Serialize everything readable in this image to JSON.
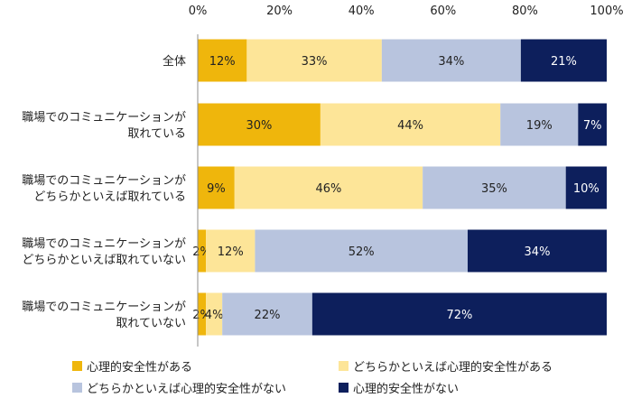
{
  "chart_data": {
    "type": "bar",
    "orientation": "horizontal",
    "stacked": true,
    "xlim": [
      0,
      100
    ],
    "xticks": [
      "0%",
      "20%",
      "40%",
      "60%",
      "80%",
      "100%"
    ],
    "grid": false,
    "legend_position": "bottom",
    "categories": [
      [
        "全体"
      ],
      [
        "職場でのコミュニケーションが",
        "取れている"
      ],
      [
        "職場でのコミュニケーションが",
        "どちらかといえば取れている"
      ],
      [
        "職場でのコミュニケーションが",
        "どちらかといえば取れていない"
      ],
      [
        "職場でのコミュニケーションが",
        "取れていない"
      ]
    ],
    "series": [
      {
        "name": "心理的安全性がある",
        "color": "#efb60c",
        "text_color": "#222222",
        "values": [
          12,
          30,
          9,
          2,
          2
        ],
        "labels": [
          "12%",
          "30%",
          "9%",
          "2%",
          "2%"
        ]
      },
      {
        "name": "どちらかといえば心理的安全性がある",
        "color": "#fde598",
        "text_color": "#222222",
        "values": [
          33,
          44,
          46,
          12,
          4
        ],
        "labels": [
          "33%",
          "44%",
          "46%",
          "12%",
          "4%"
        ]
      },
      {
        "name": "どちらかといえば心理的安全性がない",
        "color": "#b8c4de",
        "text_color": "#222222",
        "values": [
          34,
          19,
          35,
          52,
          22
        ],
        "labels": [
          "34%",
          "19%",
          "35%",
          "52%",
          "22%"
        ]
      },
      {
        "name": "心理的安全性がない",
        "color": "#0d1f5c",
        "text_color": "#ffffff",
        "values": [
          21,
          7,
          10,
          34,
          72
        ],
        "labels": [
          "21%",
          "7%",
          "10%",
          "34%",
          "72%"
        ]
      }
    ]
  }
}
